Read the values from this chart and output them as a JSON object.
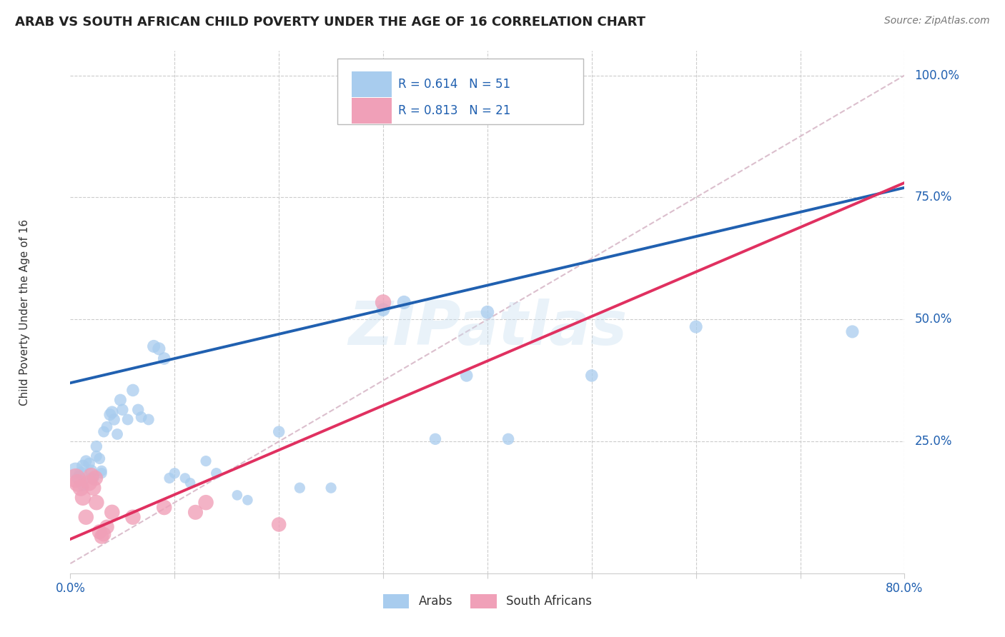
{
  "title": "ARAB VS SOUTH AFRICAN CHILD POVERTY UNDER THE AGE OF 16 CORRELATION CHART",
  "source": "Source: ZipAtlas.com",
  "ylabel": "Child Poverty Under the Age of 16",
  "xlim": [
    0.0,
    0.8
  ],
  "ylim": [
    -0.02,
    1.05
  ],
  "yticks": [
    0.0,
    0.25,
    0.5,
    0.75,
    1.0
  ],
  "ytick_labels": [
    "",
    "25.0%",
    "50.0%",
    "75.0%",
    "100.0%"
  ],
  "xticks": [
    0.0,
    0.1,
    0.2,
    0.3,
    0.4,
    0.5,
    0.6,
    0.7,
    0.8
  ],
  "xtick_labels": [
    "0.0%",
    "",
    "",
    "",
    "",
    "",
    "",
    "",
    "80.0%"
  ],
  "arab_color": "#a8ccee",
  "sa_color": "#f0a0b8",
  "trendline_arab_color": "#2060b0",
  "trendline_sa_color": "#e03060",
  "diagonal_color": "#d8b8c8",
  "watermark": "ZIPatlas",
  "arab_scatter": [
    [
      0.005,
      0.19
    ],
    [
      0.008,
      0.175
    ],
    [
      0.01,
      0.185
    ],
    [
      0.012,
      0.2
    ],
    [
      0.012,
      0.16
    ],
    [
      0.015,
      0.21
    ],
    [
      0.018,
      0.205
    ],
    [
      0.02,
      0.19
    ],
    [
      0.02,
      0.175
    ],
    [
      0.022,
      0.175
    ],
    [
      0.025,
      0.24
    ],
    [
      0.025,
      0.22
    ],
    [
      0.028,
      0.215
    ],
    [
      0.03,
      0.19
    ],
    [
      0.03,
      0.185
    ],
    [
      0.032,
      0.27
    ],
    [
      0.035,
      0.28
    ],
    [
      0.038,
      0.305
    ],
    [
      0.04,
      0.31
    ],
    [
      0.042,
      0.295
    ],
    [
      0.045,
      0.265
    ],
    [
      0.048,
      0.335
    ],
    [
      0.05,
      0.315
    ],
    [
      0.055,
      0.295
    ],
    [
      0.06,
      0.355
    ],
    [
      0.065,
      0.315
    ],
    [
      0.068,
      0.3
    ],
    [
      0.075,
      0.295
    ],
    [
      0.08,
      0.445
    ],
    [
      0.085,
      0.44
    ],
    [
      0.09,
      0.42
    ],
    [
      0.095,
      0.175
    ],
    [
      0.1,
      0.185
    ],
    [
      0.11,
      0.175
    ],
    [
      0.115,
      0.165
    ],
    [
      0.13,
      0.21
    ],
    [
      0.14,
      0.185
    ],
    [
      0.16,
      0.14
    ],
    [
      0.17,
      0.13
    ],
    [
      0.2,
      0.27
    ],
    [
      0.22,
      0.155
    ],
    [
      0.25,
      0.155
    ],
    [
      0.3,
      0.52
    ],
    [
      0.32,
      0.535
    ],
    [
      0.35,
      0.255
    ],
    [
      0.38,
      0.385
    ],
    [
      0.4,
      0.515
    ],
    [
      0.42,
      0.255
    ],
    [
      0.5,
      0.385
    ],
    [
      0.6,
      0.485
    ],
    [
      0.75,
      0.475
    ]
  ],
  "sa_scatter": [
    [
      0.005,
      0.175
    ],
    [
      0.007,
      0.165
    ],
    [
      0.01,
      0.155
    ],
    [
      0.012,
      0.135
    ],
    [
      0.015,
      0.095
    ],
    [
      0.018,
      0.165
    ],
    [
      0.02,
      0.18
    ],
    [
      0.022,
      0.155
    ],
    [
      0.024,
      0.175
    ],
    [
      0.025,
      0.125
    ],
    [
      0.028,
      0.065
    ],
    [
      0.03,
      0.055
    ],
    [
      0.032,
      0.06
    ],
    [
      0.035,
      0.075
    ],
    [
      0.04,
      0.105
    ],
    [
      0.06,
      0.095
    ],
    [
      0.09,
      0.115
    ],
    [
      0.12,
      0.105
    ],
    [
      0.13,
      0.125
    ],
    [
      0.2,
      0.08
    ],
    [
      0.3,
      0.535
    ]
  ],
  "arab_trendline": [
    0.0,
    0.8,
    0.37,
    0.77
  ],
  "sa_trendline": [
    0.0,
    0.8,
    0.05,
    0.78
  ],
  "arab_sizes": [
    280,
    200,
    180,
    160,
    140,
    140,
    140,
    160,
    140,
    140,
    140,
    130,
    130,
    120,
    120,
    130,
    130,
    150,
    160,
    140,
    130,
    150,
    140,
    130,
    160,
    140,
    130,
    130,
    170,
    170,
    160,
    120,
    120,
    110,
    110,
    120,
    120,
    110,
    110,
    140,
    120,
    120,
    180,
    190,
    140,
    160,
    180,
    140,
    160,
    170,
    170
  ],
  "sa_sizes": [
    380,
    320,
    280,
    260,
    240,
    260,
    260,
    250,
    240,
    240,
    230,
    220,
    220,
    220,
    240,
    240,
    240,
    230,
    240,
    220,
    260
  ]
}
